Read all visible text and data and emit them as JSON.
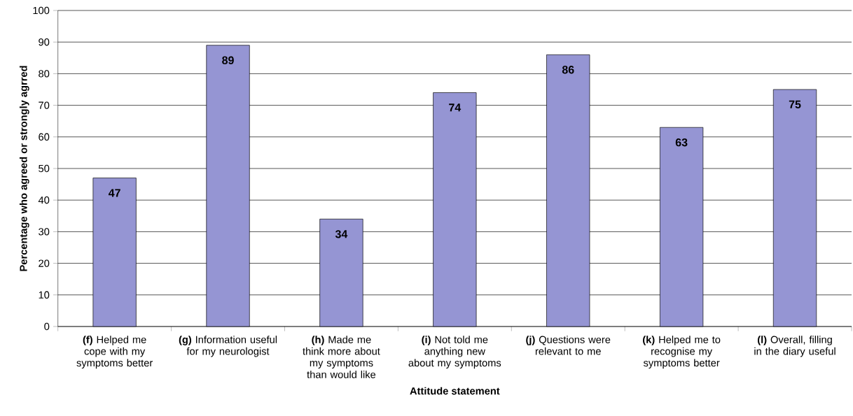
{
  "chart_data": {
    "type": "bar",
    "xlabel": "Attitude statement",
    "ylabel": "Percentage who agreed or strongly agrred",
    "categories": [
      "**(f)** Helped me cope with my symptoms better",
      "**(g)** Information useful for my neurologist",
      "**(h)** Made me think more about my symptoms than would like",
      "**(i)** Not told me anything new about my symptoms",
      "**(j)** Questions were relevant to me",
      "**(k)** Helped me to recognise my symptoms better",
      "**(l)** Overall, filling in the diary useful"
    ],
    "values": [
      47,
      89,
      34,
      74,
      86,
      63,
      75
    ],
    "color": "#9595d3",
    "ylim": [
      0,
      100
    ],
    "yticks": [
      0,
      10,
      20,
      30,
      40,
      50,
      60,
      70,
      80,
      90,
      100
    ],
    "grid": "y",
    "data_labels": true
  }
}
